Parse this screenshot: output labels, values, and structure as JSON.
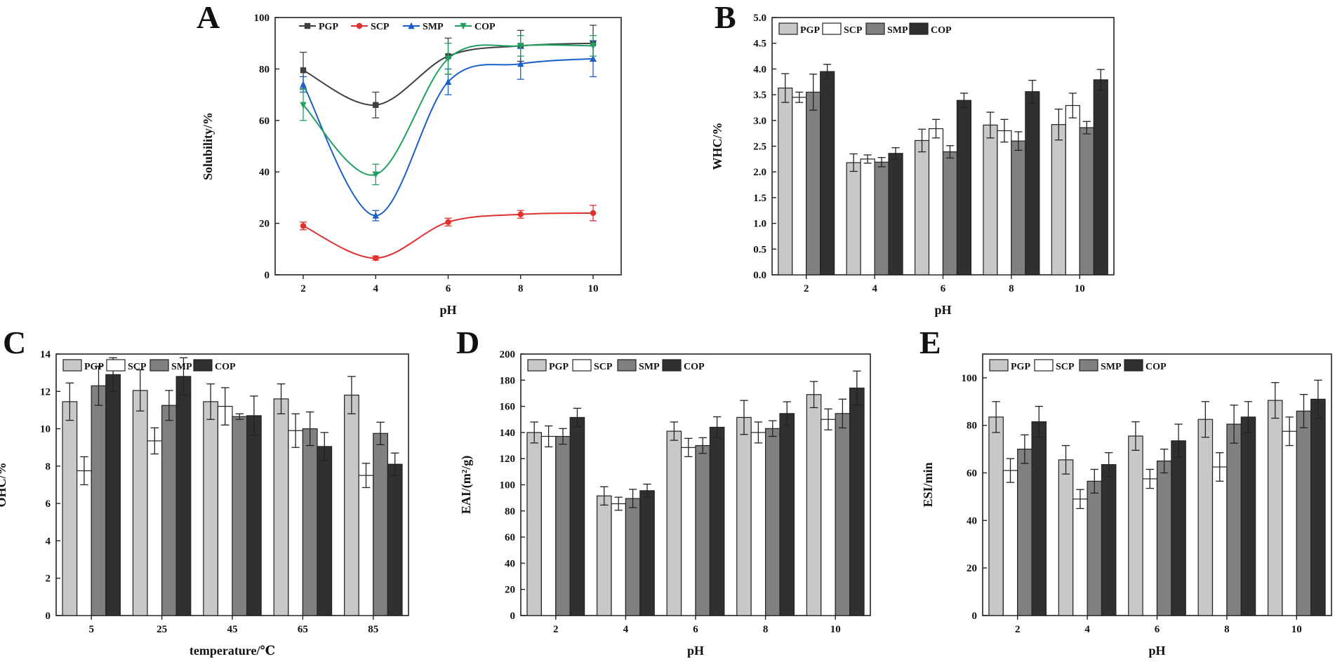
{
  "colors": {
    "PGP_line": "#404040",
    "SCP_line": "#e03030",
    "SMP_line": "#1a5ec8",
    "COP_line": "#20a060",
    "PGP_bar": "#c8c8c8",
    "SCP_bar": "#ffffff",
    "SMP_bar": "#808080",
    "COP_bar": "#303030"
  },
  "chart_data": [
    {
      "id": "A",
      "type": "line",
      "letter": "A",
      "xlabel": "pH",
      "ylabel": "Solubility/%",
      "categories": [
        "2",
        "4",
        "6",
        "8",
        "10"
      ],
      "ylim": [
        0,
        100
      ],
      "yticks": [
        "0",
        "20",
        "40",
        "60",
        "80",
        "100"
      ],
      "legend_position": "top",
      "series": [
        {
          "name": "PGP",
          "values": [
            79.5,
            66,
            85,
            89,
            90
          ],
          "errors": [
            7,
            5,
            7,
            6,
            7
          ],
          "marker": "square"
        },
        {
          "name": "SCP",
          "values": [
            19,
            6.5,
            20.5,
            23.5,
            24
          ],
          "errors": [
            1.5,
            0.8,
            1.5,
            1.5,
            3
          ],
          "marker": "circle"
        },
        {
          "name": "SMP",
          "values": [
            74,
            23,
            75,
            82,
            84
          ],
          "errors": [
            3,
            2,
            5,
            6,
            7
          ],
          "marker": "triangle-up"
        },
        {
          "name": "COP",
          "values": [
            66,
            39,
            84,
            89,
            89
          ],
          "errors": [
            6,
            4,
            6,
            4,
            4
          ],
          "marker": "triangle-down"
        }
      ]
    },
    {
      "id": "B",
      "type": "bar",
      "letter": "B",
      "xlabel": "pH",
      "ylabel": "WHC/%",
      "categories": [
        "2",
        "4",
        "6",
        "8",
        "10"
      ],
      "ylim": [
        0,
        5
      ],
      "yticks": [
        "0.0",
        "0.5",
        "1.0",
        "1.5",
        "2.0",
        "2.5",
        "3.0",
        "3.5",
        "4.0",
        "4.5",
        "5.0"
      ],
      "legend_position": "top-left",
      "series": [
        {
          "name": "PGP",
          "values": [
            3.63,
            2.18,
            2.61,
            2.91,
            2.92
          ],
          "errors": [
            0.28,
            0.17,
            0.22,
            0.25,
            0.3
          ]
        },
        {
          "name": "SCP",
          "values": [
            3.45,
            2.25,
            2.84,
            2.8,
            3.29
          ],
          "errors": [
            0.1,
            0.08,
            0.18,
            0.22,
            0.24
          ]
        },
        {
          "name": "SMP",
          "values": [
            3.55,
            2.19,
            2.39,
            2.6,
            2.86
          ],
          "errors": [
            0.35,
            0.09,
            0.12,
            0.18,
            0.12
          ]
        },
        {
          "name": "COP",
          "values": [
            3.95,
            2.36,
            3.39,
            3.56,
            3.79
          ],
          "errors": [
            0.14,
            0.11,
            0.14,
            0.22,
            0.2
          ]
        }
      ]
    },
    {
      "id": "C",
      "type": "bar",
      "letter": "C",
      "xlabel": "temperature/℃",
      "ylabel": "OHC/%",
      "categories": [
        "5",
        "25",
        "45",
        "65",
        "85"
      ],
      "ylim": [
        0,
        14
      ],
      "yticks": [
        "0",
        "2",
        "4",
        "6",
        "8",
        "10",
        "12",
        "14"
      ],
      "legend_position": "top-left",
      "series": [
        {
          "name": "PGP",
          "values": [
            11.45,
            12.05,
            11.45,
            11.6,
            11.8
          ],
          "errors": [
            1.0,
            1.1,
            0.95,
            0.8,
            1.0
          ]
        },
        {
          "name": "SCP",
          "values": [
            7.75,
            9.35,
            11.2,
            9.9,
            7.5
          ],
          "errors": [
            0.75,
            0.7,
            1.0,
            0.9,
            0.65
          ]
        },
        {
          "name": "SMP",
          "values": [
            12.3,
            11.25,
            10.65,
            10.0,
            9.75
          ],
          "errors": [
            1.05,
            0.8,
            0.15,
            0.9,
            0.6
          ]
        },
        {
          "name": "COP",
          "values": [
            12.9,
            12.8,
            10.7,
            9.05,
            8.1
          ],
          "errors": [
            0.9,
            1.0,
            1.05,
            0.75,
            0.6
          ]
        }
      ]
    },
    {
      "id": "D",
      "type": "bar",
      "letter": "D",
      "xlabel": "pH",
      "ylabel": "EAI/(m²/g)",
      "categories": [
        "2",
        "4",
        "6",
        "8",
        "10"
      ],
      "ylim": [
        0,
        200
      ],
      "yticks": [
        "0",
        "20",
        "40",
        "60",
        "80",
        "100",
        "120",
        "140",
        "160",
        "180",
        "200"
      ],
      "legend_position": "top-left",
      "series": [
        {
          "name": "PGP",
          "values": [
            140,
            91.5,
            141,
            151.5,
            169
          ],
          "errors": [
            8,
            7,
            7,
            13,
            10
          ]
        },
        {
          "name": "SCP",
          "values": [
            137,
            85.5,
            128.5,
            140,
            150
          ],
          "errors": [
            8,
            5,
            7,
            8,
            8
          ]
        },
        {
          "name": "SMP",
          "values": [
            137,
            89.5,
            130,
            143,
            154.5
          ],
          "errors": [
            6,
            7,
            6,
            6,
            11
          ]
        },
        {
          "name": "COP",
          "values": [
            151.5,
            95.5,
            144,
            154.5,
            174
          ],
          "errors": [
            7,
            5,
            8,
            9,
            13
          ]
        }
      ]
    },
    {
      "id": "E",
      "type": "bar",
      "letter": "E",
      "xlabel": "pH",
      "ylabel": "ESI/min",
      "categories": [
        "2",
        "4",
        "6",
        "8",
        "10"
      ],
      "ylim": [
        0,
        110
      ],
      "yticks": [
        "0",
        "20",
        "40",
        "60",
        "80",
        "100"
      ],
      "legend_position": "top-left",
      "series": [
        {
          "name": "PGP",
          "values": [
            83.5,
            65.5,
            75.5,
            82.5,
            90.5
          ],
          "errors": [
            6.5,
            6,
            6,
            7.5,
            7.5
          ]
        },
        {
          "name": "SCP",
          "values": [
            61,
            49,
            57.5,
            62.5,
            77.5
          ],
          "errors": [
            5,
            4,
            4,
            6,
            6
          ]
        },
        {
          "name": "SMP",
          "values": [
            70,
            56.5,
            65,
            80.5,
            86
          ],
          "errors": [
            6,
            5,
            5,
            8,
            7
          ]
        },
        {
          "name": "COP",
          "values": [
            81.5,
            63.5,
            73.5,
            83.5,
            91
          ],
          "errors": [
            6.5,
            5,
            7,
            6.5,
            8
          ]
        }
      ]
    }
  ]
}
